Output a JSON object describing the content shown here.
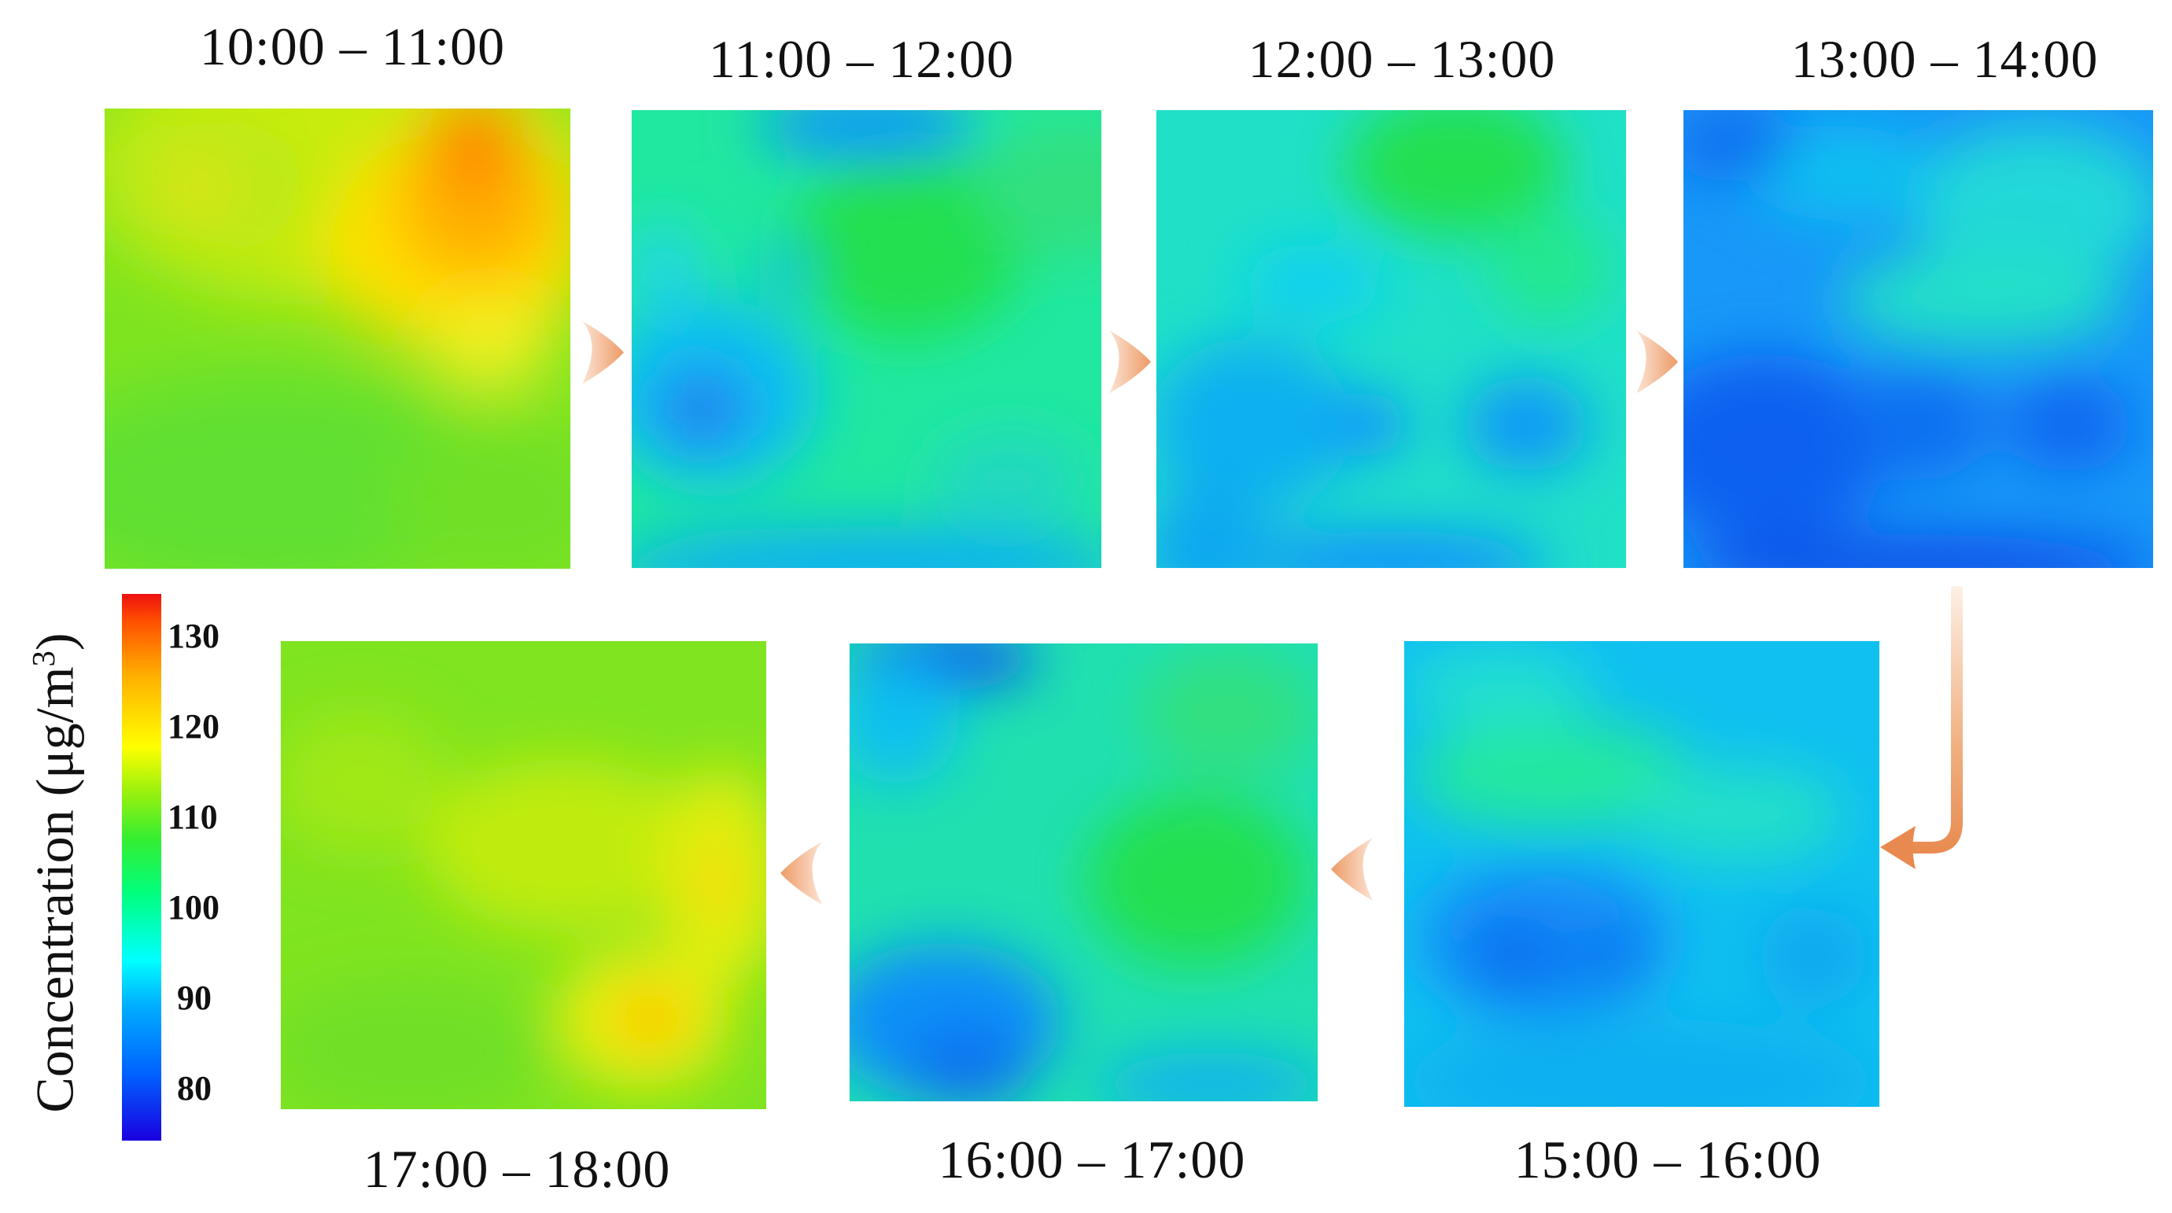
{
  "panels": [
    {
      "label": "10:00 – 11:00"
    },
    {
      "label": "11:00 – 12:00"
    },
    {
      "label": "12:00 – 13:00"
    },
    {
      "label": "13:00 – 14:00"
    },
    {
      "label": "15:00 – 16:00"
    },
    {
      "label": "16:00 – 17:00"
    },
    {
      "label": "17:00 – 18:00"
    }
  ],
  "colorbar": {
    "title_main": "Concentration (μg/m",
    "title_sup": "3",
    "title_close": ")",
    "ticks": [
      "130",
      "120",
      "110",
      "100",
      "90",
      "80"
    ]
  },
  "arrow_color": "#f0a070"
}
